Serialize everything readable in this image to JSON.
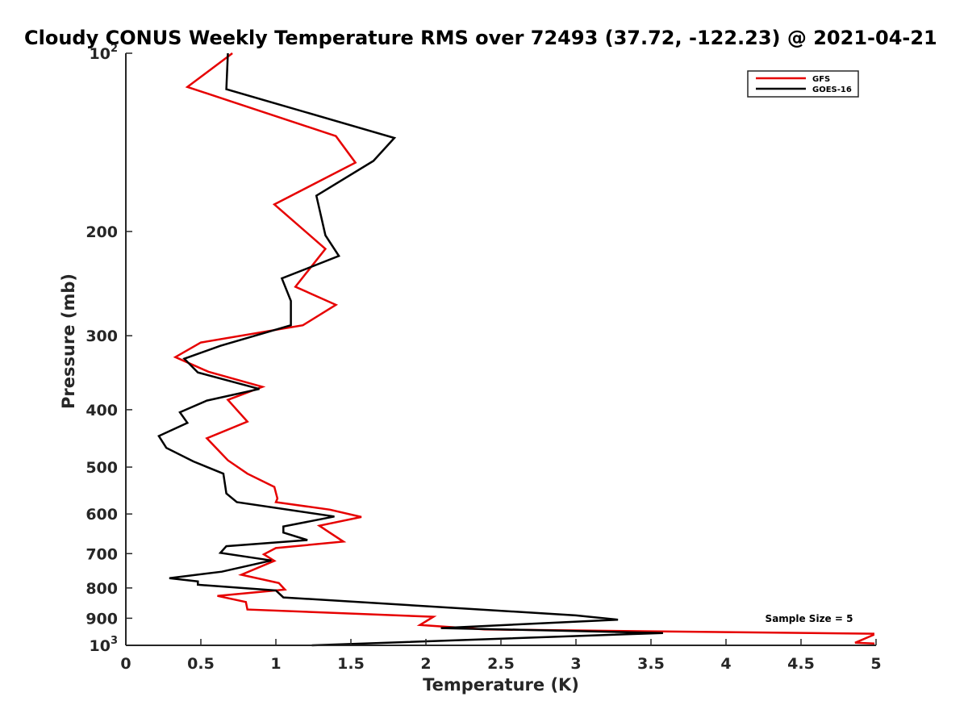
{
  "chart_data": {
    "type": "line",
    "title": "Cloudy CONUS Weekly Temperature RMS over 72493 (37.72, -122.23) @ 2021-04-21",
    "xlabel": "Temperature (K)",
    "ylabel": "Pressure (mb)",
    "xlim": [
      0,
      5
    ],
    "ylim": [
      100,
      1000
    ],
    "y_scale": "log",
    "y_reversed": true,
    "x_ticks": [
      "0",
      "0.5",
      "1",
      "1.5",
      "2",
      "2.5",
      "3",
      "3.5",
      "4",
      "4.5",
      "5"
    ],
    "x_tick_values": [
      0,
      0.5,
      1,
      1.5,
      2,
      2.5,
      3,
      3.5,
      4,
      4.5,
      5
    ],
    "y_ticks": [
      {
        "value": 100,
        "base": "10",
        "exp": "2"
      },
      {
        "value": 200,
        "base": "200",
        "exp": ""
      },
      {
        "value": 300,
        "base": "300",
        "exp": ""
      },
      {
        "value": 400,
        "base": "400",
        "exp": ""
      },
      {
        "value": 500,
        "base": "500",
        "exp": ""
      },
      {
        "value": 600,
        "base": "600",
        "exp": ""
      },
      {
        "value": 700,
        "base": "700",
        "exp": ""
      },
      {
        "value": 800,
        "base": "800",
        "exp": ""
      },
      {
        "value": 900,
        "base": "900",
        "exp": ""
      },
      {
        "value": 1000,
        "base": "10",
        "exp": "3"
      }
    ],
    "grid": false,
    "legend_position": "top-right",
    "annotation": "Sample Size = 5",
    "series": [
      {
        "name": "GFS",
        "color": "#e60000",
        "points": [
          [
            0.71,
            100
          ],
          [
            0.41,
            114
          ],
          [
            1.4,
            138
          ],
          [
            1.53,
            153
          ],
          [
            0.99,
            180
          ],
          [
            1.33,
            214
          ],
          [
            1.13,
            248
          ],
          [
            1.4,
            266
          ],
          [
            1.18,
            288
          ],
          [
            0.5,
            308
          ],
          [
            0.33,
            326
          ],
          [
            0.55,
            345
          ],
          [
            0.91,
            366
          ],
          [
            0.68,
            385
          ],
          [
            0.81,
            419
          ],
          [
            0.54,
            447
          ],
          [
            0.68,
            487
          ],
          [
            0.81,
            513
          ],
          [
            0.99,
            540
          ],
          [
            1.01,
            565
          ],
          [
            1.0,
            573
          ],
          [
            1.36,
            590
          ],
          [
            1.57,
            607
          ],
          [
            1.29,
            628
          ],
          [
            1.35,
            643
          ],
          [
            1.45,
            668
          ],
          [
            1.0,
            685
          ],
          [
            0.92,
            702
          ],
          [
            0.99,
            720
          ],
          [
            0.77,
            760
          ],
          [
            1.02,
            785
          ],
          [
            1.06,
            805
          ],
          [
            0.61,
            825
          ],
          [
            0.8,
            845
          ],
          [
            0.81,
            870
          ],
          [
            2.05,
            895
          ],
          [
            1.96,
            924
          ],
          [
            2.39,
            940
          ],
          [
            5.0,
            956
          ],
          [
            4.86,
            990
          ],
          [
            5.0,
            993
          ]
        ]
      },
      {
        "name": "GOES-16",
        "color": "#000000",
        "points": [
          [
            0.68,
            100
          ],
          [
            0.67,
            115
          ],
          [
            1.79,
            139
          ],
          [
            1.65,
            152
          ],
          [
            1.27,
            174
          ],
          [
            1.33,
            203
          ],
          [
            1.42,
            220
          ],
          [
            1.04,
            240
          ],
          [
            1.1,
            262
          ],
          [
            1.1,
            288
          ],
          [
            0.63,
            312
          ],
          [
            0.39,
            328
          ],
          [
            0.48,
            346
          ],
          [
            0.89,
            369
          ],
          [
            0.54,
            386
          ],
          [
            0.36,
            404
          ],
          [
            0.41,
            421
          ],
          [
            0.22,
            443
          ],
          [
            0.27,
            464
          ],
          [
            0.45,
            489
          ],
          [
            0.65,
            513
          ],
          [
            0.67,
            554
          ],
          [
            0.74,
            573
          ],
          [
            1.39,
            606
          ],
          [
            1.05,
            630
          ],
          [
            1.05,
            645
          ],
          [
            1.21,
            664
          ],
          [
            0.67,
            680
          ],
          [
            0.63,
            698
          ],
          [
            0.97,
            719
          ],
          [
            0.64,
            751
          ],
          [
            0.29,
            770
          ],
          [
            0.48,
            780
          ],
          [
            0.48,
            790
          ],
          [
            1.0,
            808
          ],
          [
            1.05,
            830
          ],
          [
            3.0,
            890
          ],
          [
            3.28,
            905
          ],
          [
            2.1,
            935
          ],
          [
            3.58,
            953
          ],
          [
            1.24,
            1000
          ]
        ]
      }
    ]
  }
}
